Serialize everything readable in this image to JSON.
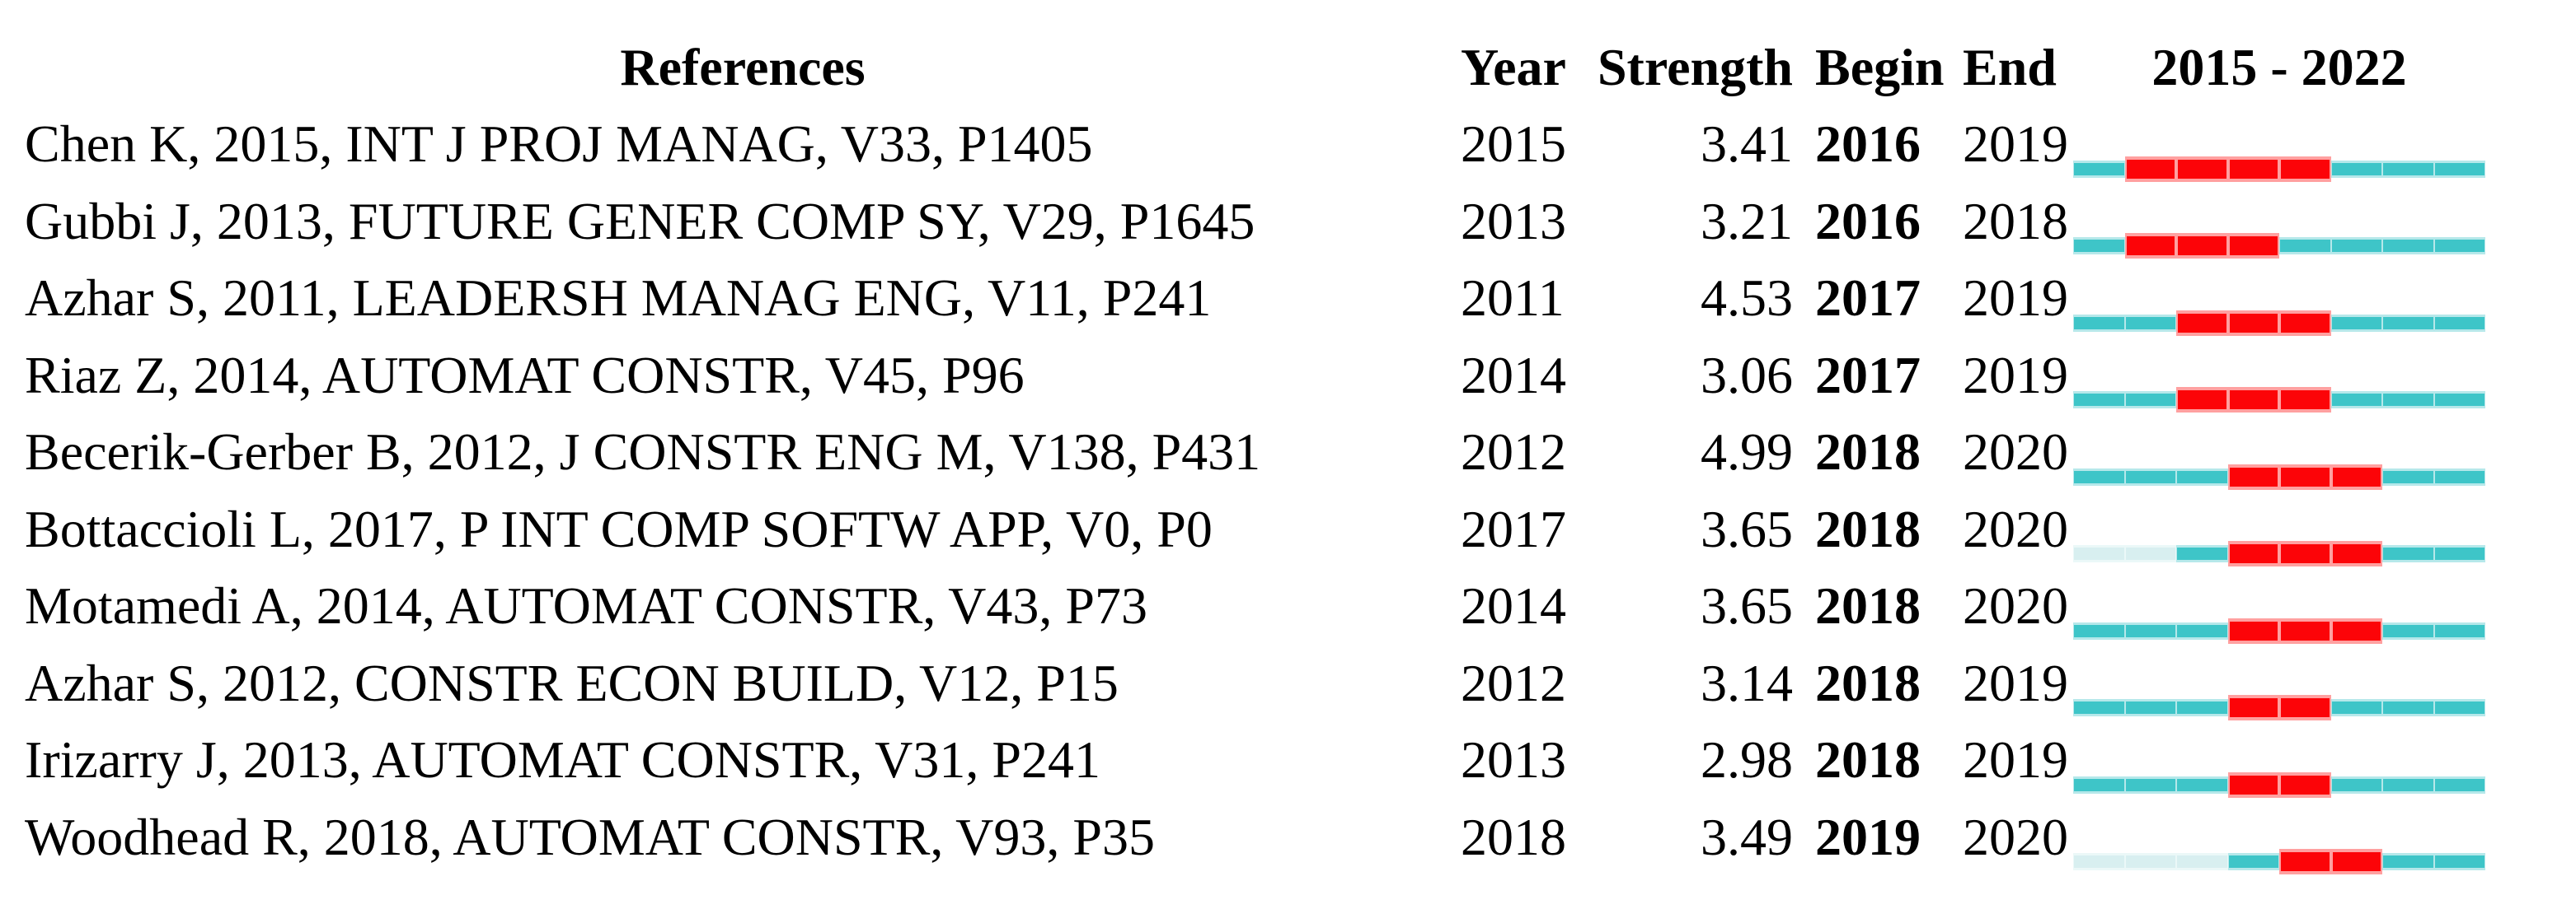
{
  "colors": {
    "background": "#ffffff",
    "text": "#000000",
    "burst_red": "#fc0408",
    "burst_red_halo": "#ffa0a0",
    "active_teal": "#3ec5c8",
    "active_teal_halo": "#b6e8ea",
    "pre_publication_pale": "#d8eff0",
    "pre_publication_pale_halo": "#ebf8f8"
  },
  "chart_data": {
    "type": "table",
    "columns": [
      "References",
      "Year",
      "Strength",
      "Begin",
      "End",
      "2015 - 2022"
    ],
    "timeline_range": [
      2015,
      2022
    ],
    "legend": {
      "red_segment": "citation burst period (Begin to End)",
      "teal_segment": "active years",
      "pale_segment": "years before publication"
    },
    "rows": [
      {
        "reference": "Chen K, 2015, INT J PROJ MANAG, V33, P1405",
        "year": 2015,
        "strength": 3.41,
        "begin": 2016,
        "end": 2019
      },
      {
        "reference": "Gubbi J, 2013, FUTURE GENER COMP SY, V29, P1645",
        "year": 2013,
        "strength": 3.21,
        "begin": 2016,
        "end": 2018
      },
      {
        "reference": "Azhar S, 2011, LEADERSH MANAG ENG, V11, P241",
        "year": 2011,
        "strength": 4.53,
        "begin": 2017,
        "end": 2019
      },
      {
        "reference": "Riaz Z, 2014, AUTOMAT CONSTR, V45, P96",
        "year": 2014,
        "strength": 3.06,
        "begin": 2017,
        "end": 2019
      },
      {
        "reference": "Becerik-Gerber B, 2012, J CONSTR ENG M, V138, P431",
        "year": 2012,
        "strength": 4.99,
        "begin": 2018,
        "end": 2020
      },
      {
        "reference": "Bottaccioli L, 2017, P INT COMP SOFTW APP, V0, P0",
        "year": 2017,
        "strength": 3.65,
        "begin": 2018,
        "end": 2020
      },
      {
        "reference": "Motamedi A, 2014, AUTOMAT CONSTR, V43, P73",
        "year": 2014,
        "strength": 3.65,
        "begin": 2018,
        "end": 2020
      },
      {
        "reference": "Azhar S, 2012, CONSTR ECON BUILD, V12, P15",
        "year": 2012,
        "strength": 3.14,
        "begin": 2018,
        "end": 2019
      },
      {
        "reference": "Irizarry J, 2013, AUTOMAT CONSTR, V31, P241",
        "year": 2013,
        "strength": 2.98,
        "begin": 2018,
        "end": 2019
      },
      {
        "reference": "Woodhead R, 2018, AUTOMAT CONSTR, V93, P35",
        "year": 2018,
        "strength": 3.49,
        "begin": 2019,
        "end": 2020
      }
    ]
  }
}
